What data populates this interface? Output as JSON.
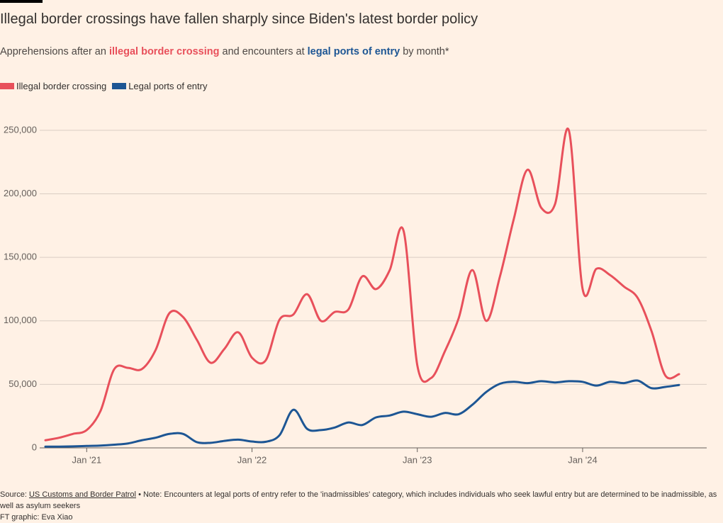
{
  "chart_data": {
    "type": "line",
    "title": "Illegal border crossings have fallen sharply since Biden's latest border policy",
    "subtitle": [
      "Apprehensions after an",
      "illegal border crossing",
      "and encounters at",
      "legal ports of entry",
      "by month*"
    ],
    "x": [
      "2020-10",
      "2020-11",
      "2020-12",
      "2021-01",
      "2021-02",
      "2021-03",
      "2021-04",
      "2021-05",
      "2021-06",
      "2021-07",
      "2021-08",
      "2021-09",
      "2021-10",
      "2021-11",
      "2021-12",
      "2022-01",
      "2022-02",
      "2022-03",
      "2022-04",
      "2022-05",
      "2022-06",
      "2022-07",
      "2022-08",
      "2022-09",
      "2022-10",
      "2022-11",
      "2022-12",
      "2023-01",
      "2023-02",
      "2023-03",
      "2023-04",
      "2023-05",
      "2023-06",
      "2023-07",
      "2023-08",
      "2023-09",
      "2023-10",
      "2023-11",
      "2023-12",
      "2024-01",
      "2024-02",
      "2024-03",
      "2024-04",
      "2024-05",
      "2024-06",
      "2024-07",
      "2024-08"
    ],
    "xticks": [
      {
        "value": "2021-01",
        "label": "Jan '21"
      },
      {
        "value": "2022-01",
        "label": "Jan '22"
      },
      {
        "value": "2023-01",
        "label": "Jan '23"
      },
      {
        "value": "2024-01",
        "label": "Jan '24"
      }
    ],
    "series": [
      {
        "name": "Illegal border crossing",
        "color": "#e8505b",
        "values": [
          6000,
          8000,
          11000,
          14000,
          29000,
          62000,
          63000,
          62000,
          77000,
          106000,
          103000,
          85000,
          67000,
          78000,
          91000,
          71000,
          69000,
          101000,
          105000,
          121000,
          100000,
          107000,
          109000,
          135000,
          125000,
          140000,
          171000,
          65000,
          55000,
          76000,
          102000,
          140000,
          100000,
          135000,
          180000,
          219000,
          189000,
          192000,
          250000,
          125000,
          141000,
          136000,
          127000,
          118000,
          92000,
          57000,
          58000
        ]
      },
      {
        "name": "Legal ports of entry",
        "color": "#1d5694",
        "values": [
          1000,
          1000,
          1200,
          1500,
          1800,
          2500,
          3500,
          6000,
          8000,
          11000,
          11000,
          4500,
          4000,
          5500,
          6500,
          5000,
          4800,
          10000,
          30000,
          15000,
          14000,
          16000,
          20000,
          18000,
          24000,
          25500,
          28500,
          26500,
          24500,
          27500,
          26500,
          34000,
          44000,
          50500,
          52000,
          51000,
          52500,
          51500,
          52500,
          52000,
          49000,
          52000,
          51000,
          53000,
          47000,
          48000,
          49500
        ]
      }
    ],
    "ylim": [
      0,
      260000
    ],
    "yticks": [
      0,
      {
        "value": 50000,
        "label": "50,000"
      },
      {
        "value": 100000,
        "label": "100,000"
      },
      {
        "value": 150000,
        "label": "150,000"
      },
      {
        "value": 200000,
        "label": "200,000"
      },
      {
        "value": 250000,
        "label": "250,000"
      }
    ],
    "grid": true,
    "source": {
      "label": "Source:",
      "link": "US Customs and Border Patrol",
      "note": "• Note: Encounters at legal ports of entry refer to the 'inadmissibles' category, which includes individuals who seek lawful entry but are determined to be inadmissible, as well as asylum seekers"
    },
    "credit": "FT graphic: Eva Xiao"
  }
}
